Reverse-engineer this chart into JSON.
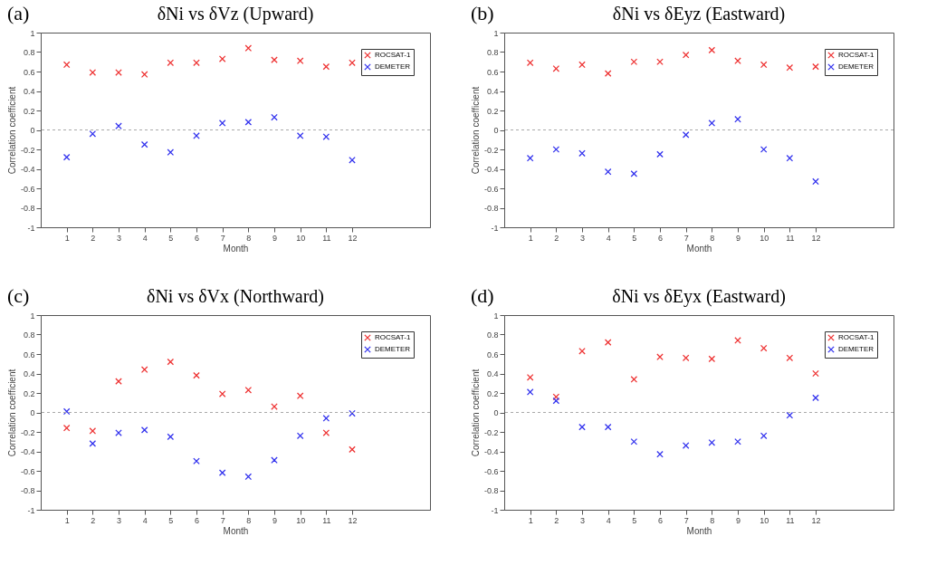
{
  "chart_data": [
    {
      "type": "scatter",
      "title": "δNi vs δVz (Upward)",
      "annotations": [
        "(a)"
      ],
      "xlabel": "Month",
      "ylabel": "Correlation coefficient",
      "x": [
        1,
        2,
        3,
        4,
        5,
        6,
        7,
        8,
        9,
        10,
        11,
        12
      ],
      "xlim": [
        0,
        15
      ],
      "xticks": [
        1,
        2,
        3,
        4,
        5,
        6,
        7,
        8,
        9,
        10,
        11,
        12
      ],
      "ylim": [
        -1,
        1
      ],
      "yticks": [
        -1,
        -0.8,
        -0.6,
        -0.4,
        -0.2,
        0,
        0.2,
        0.4,
        0.6,
        0.8,
        1
      ],
      "grid": false,
      "legend": "top right",
      "marker": "cross",
      "ref_lines": [
        {
          "axis": "y",
          "value": 0,
          "color": "#aaaaaa",
          "line_style": "dashed"
        }
      ],
      "series": [
        {
          "name": "ROCSAT-1",
          "color": "#ee3333",
          "values": [
            0.67,
            0.59,
            0.59,
            0.57,
            0.69,
            0.69,
            0.73,
            0.84,
            0.72,
            0.71,
            0.65,
            0.69
          ]
        },
        {
          "name": "DEMETER",
          "color": "#3333ee",
          "values": [
            -0.28,
            -0.04,
            0.04,
            -0.15,
            -0.23,
            -0.06,
            0.07,
            0.08,
            0.13,
            -0.06,
            -0.07,
            -0.31
          ]
        }
      ]
    },
    {
      "type": "scatter",
      "title": "δNi vs δEyz (Eastward)",
      "annotations": [
        "(b)"
      ],
      "xlabel": "Month",
      "ylabel": "Correlation coefficient",
      "x": [
        1,
        2,
        3,
        4,
        5,
        6,
        7,
        8,
        9,
        10,
        11,
        12
      ],
      "xlim": [
        0,
        15
      ],
      "xticks": [
        1,
        2,
        3,
        4,
        5,
        6,
        7,
        8,
        9,
        10,
        11,
        12
      ],
      "ylim": [
        -1,
        1
      ],
      "yticks": [
        -1,
        -0.8,
        -0.6,
        -0.4,
        -0.2,
        0,
        0.2,
        0.4,
        0.6,
        0.8,
        1
      ],
      "grid": false,
      "legend": "top right",
      "marker": "cross",
      "ref_lines": [
        {
          "axis": "y",
          "value": 0,
          "color": "#aaaaaa",
          "line_style": "dashed"
        }
      ],
      "series": [
        {
          "name": "ROCSAT-1",
          "color": "#ee3333",
          "values": [
            0.69,
            0.63,
            0.67,
            0.58,
            0.7,
            0.7,
            0.77,
            0.82,
            0.71,
            0.67,
            0.64,
            0.65
          ]
        },
        {
          "name": "DEMETER",
          "color": "#3333ee",
          "values": [
            -0.29,
            -0.2,
            -0.24,
            -0.43,
            -0.45,
            -0.25,
            -0.05,
            0.07,
            0.11,
            -0.2,
            -0.29,
            -0.53
          ]
        }
      ]
    },
    {
      "type": "scatter",
      "title": "δNi vs δVx (Northward)",
      "annotations": [
        "(c)"
      ],
      "xlabel": "Month",
      "ylabel": "Correlation coefficient",
      "x": [
        1,
        2,
        3,
        4,
        5,
        6,
        7,
        8,
        9,
        10,
        11,
        12
      ],
      "xlim": [
        0,
        15
      ],
      "xticks": [
        1,
        2,
        3,
        4,
        5,
        6,
        7,
        8,
        9,
        10,
        11,
        12
      ],
      "ylim": [
        -1,
        1
      ],
      "yticks": [
        -1,
        -0.8,
        -0.6,
        -0.4,
        -0.2,
        0,
        0.2,
        0.4,
        0.6,
        0.8,
        1
      ],
      "grid": false,
      "legend": "top right",
      "marker": "cross",
      "ref_lines": [
        {
          "axis": "y",
          "value": 0,
          "color": "#aaaaaa",
          "line_style": "dashed"
        }
      ],
      "series": [
        {
          "name": "ROCSAT-1",
          "color": "#ee3333",
          "values": [
            -0.16,
            -0.19,
            0.32,
            0.44,
            0.52,
            0.38,
            0.19,
            0.23,
            0.06,
            0.17,
            -0.21,
            -0.38
          ]
        },
        {
          "name": "DEMETER",
          "color": "#3333ee",
          "values": [
            0.01,
            -0.32,
            -0.21,
            -0.18,
            -0.25,
            -0.5,
            -0.62,
            -0.66,
            -0.49,
            -0.24,
            -0.06,
            -0.01
          ]
        }
      ]
    },
    {
      "type": "scatter",
      "title": "δNi vs δEyx (Eastward)",
      "annotations": [
        "(d)"
      ],
      "xlabel": "Month",
      "ylabel": "Correlation coefficient",
      "x": [
        1,
        2,
        3,
        4,
        5,
        6,
        7,
        8,
        9,
        10,
        11,
        12
      ],
      "xlim": [
        0,
        15
      ],
      "xticks": [
        1,
        2,
        3,
        4,
        5,
        6,
        7,
        8,
        9,
        10,
        11,
        12
      ],
      "ylim": [
        -1,
        1
      ],
      "yticks": [
        -1,
        -0.8,
        -0.6,
        -0.4,
        -0.2,
        0,
        0.2,
        0.4,
        0.6,
        0.8,
        1
      ],
      "grid": false,
      "legend": "top right",
      "marker": "cross",
      "ref_lines": [
        {
          "axis": "y",
          "value": 0,
          "color": "#aaaaaa",
          "line_style": "dashed"
        }
      ],
      "series": [
        {
          "name": "ROCSAT-1",
          "color": "#ee3333",
          "values": [
            0.36,
            0.16,
            0.63,
            0.72,
            0.34,
            0.57,
            0.56,
            0.55,
            0.74,
            0.66,
            0.56,
            0.4
          ]
        },
        {
          "name": "DEMETER",
          "color": "#3333ee",
          "values": [
            0.21,
            0.12,
            -0.15,
            -0.15,
            -0.3,
            -0.43,
            -0.34,
            -0.31,
            -0.3,
            -0.24,
            -0.03,
            0.15
          ]
        }
      ]
    }
  ]
}
